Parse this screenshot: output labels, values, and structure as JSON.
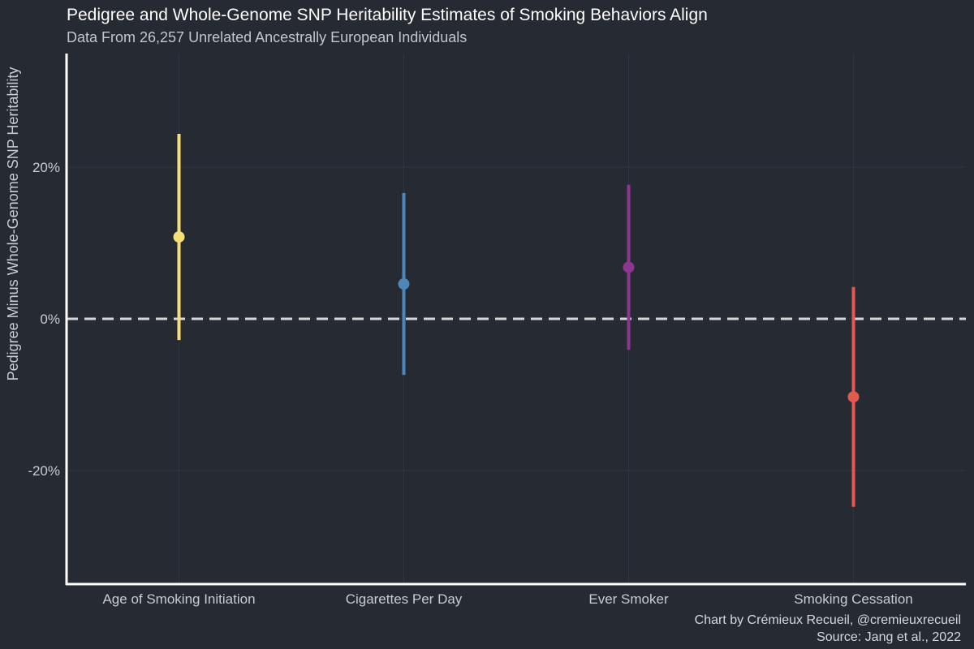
{
  "chart_data": {
    "type": "errorbar",
    "title": "Pedigree and Whole-Genome SNP Heritability Estimates of Smoking Behaviors Align",
    "subtitle": "Data From 26,257 Unrelated Ancestrally European Individuals",
    "xlabel": "",
    "ylabel": "Pedigree Minus Whole-Genome SNP Heritability",
    "ylim": [
      -35,
      35
    ],
    "y_ticks": [
      -20,
      0,
      20
    ],
    "y_tick_labels": [
      "-20%",
      "0%",
      "20%"
    ],
    "reference_line": 0,
    "grid": true,
    "categories": [
      "Age of Smoking Initiation",
      "Cigarettes Per Day",
      "Ever Smoker",
      "Smoking Cessation"
    ],
    "points": [
      {
        "category": "Age of Smoking Initiation",
        "estimate": 10.8,
        "lower": -2.8,
        "upper": 24.4,
        "color": "#f7df77"
      },
      {
        "category": "Cigarettes Per Day",
        "estimate": 4.6,
        "lower": -7.4,
        "upper": 16.6,
        "color": "#4d86b8"
      },
      {
        "category": "Ever Smoker",
        "estimate": 6.8,
        "lower": -4.1,
        "upper": 17.7,
        "color": "#8e3590"
      },
      {
        "category": "Smoking Cessation",
        "estimate": -10.3,
        "lower": -24.8,
        "upper": 4.2,
        "color": "#e3594e"
      }
    ],
    "caption": [
      "Chart by Crémieux Recueil, @cremieuxrecueil",
      "Source: Jang et al., 2022"
    ]
  },
  "colors": {
    "background": "#252a33",
    "axis": "#ffffff",
    "grid": "#30353f",
    "reference": "#d7d7d7"
  }
}
